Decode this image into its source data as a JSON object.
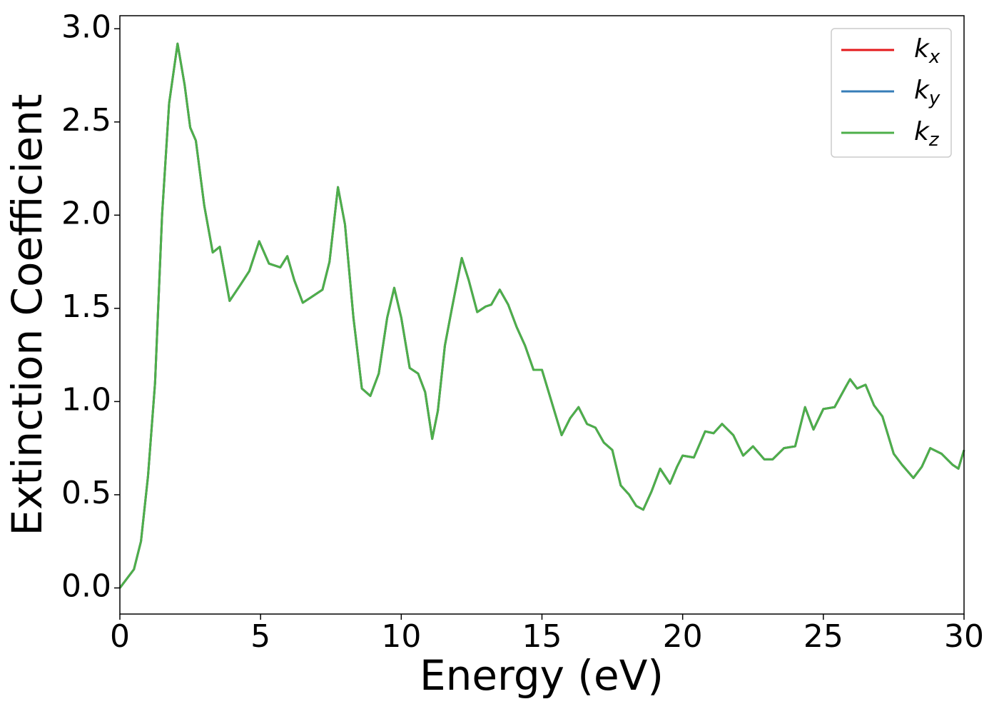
{
  "chart_data": {
    "type": "line",
    "xlabel": "Energy (eV)",
    "ylabel": "Extinction Coefficient",
    "x": [
      0,
      0.5,
      0.75,
      1.0,
      1.25,
      1.5,
      1.75,
      2.05,
      2.3,
      2.5,
      2.7,
      3.0,
      3.3,
      3.55,
      3.9,
      4.3,
      4.6,
      4.95,
      5.3,
      5.7,
      5.95,
      6.2,
      6.5,
      6.8,
      7.2,
      7.45,
      7.75,
      8.0,
      8.3,
      8.6,
      8.9,
      9.2,
      9.5,
      9.75,
      10.0,
      10.3,
      10.6,
      10.85,
      11.1,
      11.3,
      11.55,
      11.8,
      12.15,
      12.4,
      12.7,
      13.0,
      13.2,
      13.5,
      13.8,
      14.1,
      14.4,
      14.7,
      15.0,
      15.3,
      15.7,
      16.0,
      16.3,
      16.6,
      16.9,
      17.2,
      17.5,
      17.8,
      18.1,
      18.35,
      18.6,
      18.9,
      19.2,
      19.55,
      19.8,
      20.0,
      20.4,
      20.8,
      21.1,
      21.4,
      21.8,
      22.15,
      22.5,
      22.9,
      23.2,
      23.6,
      24.0,
      24.35,
      24.65,
      25.0,
      25.4,
      25.8,
      25.95,
      26.2,
      26.5,
      26.8,
      27.1,
      27.5,
      27.8,
      28.2,
      28.5,
      28.8,
      29.2,
      29.6,
      29.8,
      30.0
    ],
    "series": [
      {
        "name": "kx",
        "color": "#e41a1c",
        "values": [
          0,
          0.1,
          0.25,
          0.6,
          1.1,
          2.0,
          2.6,
          2.92,
          2.7,
          2.47,
          2.4,
          2.05,
          1.8,
          1.83,
          1.54,
          1.63,
          1.7,
          1.86,
          1.74,
          1.72,
          1.78,
          1.65,
          1.53,
          1.56,
          1.6,
          1.75,
          2.15,
          1.95,
          1.45,
          1.07,
          1.03,
          1.15,
          1.45,
          1.61,
          1.45,
          1.18,
          1.15,
          1.05,
          0.8,
          0.95,
          1.3,
          1.5,
          1.77,
          1.65,
          1.48,
          1.51,
          1.52,
          1.6,
          1.52,
          1.4,
          1.3,
          1.17,
          1.17,
          1.02,
          0.82,
          0.91,
          0.97,
          0.88,
          0.86,
          0.78,
          0.74,
          0.55,
          0.5,
          0.44,
          0.42,
          0.52,
          0.64,
          0.56,
          0.65,
          0.71,
          0.7,
          0.84,
          0.83,
          0.88,
          0.82,
          0.71,
          0.76,
          0.69,
          0.69,
          0.75,
          0.76,
          0.97,
          0.85,
          0.96,
          0.97,
          1.08,
          1.12,
          1.07,
          1.09,
          0.98,
          0.92,
          0.72,
          0.66,
          0.59,
          0.65,
          0.75,
          0.72,
          0.66,
          0.64,
          0.74
        ]
      },
      {
        "name": "ky",
        "color": "#377eb8",
        "values": [
          0,
          0.1,
          0.25,
          0.6,
          1.1,
          2.0,
          2.6,
          2.92,
          2.7,
          2.47,
          2.4,
          2.05,
          1.8,
          1.83,
          1.54,
          1.63,
          1.7,
          1.86,
          1.74,
          1.72,
          1.78,
          1.65,
          1.53,
          1.56,
          1.6,
          1.75,
          2.15,
          1.95,
          1.45,
          1.07,
          1.03,
          1.15,
          1.45,
          1.61,
          1.45,
          1.18,
          1.15,
          1.05,
          0.8,
          0.95,
          1.3,
          1.5,
          1.77,
          1.65,
          1.48,
          1.51,
          1.52,
          1.6,
          1.52,
          1.4,
          1.3,
          1.17,
          1.17,
          1.02,
          0.82,
          0.91,
          0.97,
          0.88,
          0.86,
          0.78,
          0.74,
          0.55,
          0.5,
          0.44,
          0.42,
          0.52,
          0.64,
          0.56,
          0.65,
          0.71,
          0.7,
          0.84,
          0.83,
          0.88,
          0.82,
          0.71,
          0.76,
          0.69,
          0.69,
          0.75,
          0.76,
          0.97,
          0.85,
          0.96,
          0.97,
          1.08,
          1.12,
          1.07,
          1.09,
          0.98,
          0.92,
          0.72,
          0.66,
          0.59,
          0.65,
          0.75,
          0.72,
          0.66,
          0.64,
          0.74
        ]
      },
      {
        "name": "kz",
        "color": "#4daf4a",
        "values": [
          0,
          0.1,
          0.25,
          0.6,
          1.1,
          2.0,
          2.6,
          2.92,
          2.7,
          2.47,
          2.4,
          2.05,
          1.8,
          1.83,
          1.54,
          1.63,
          1.7,
          1.86,
          1.74,
          1.72,
          1.78,
          1.65,
          1.53,
          1.56,
          1.6,
          1.75,
          2.15,
          1.95,
          1.45,
          1.07,
          1.03,
          1.15,
          1.45,
          1.61,
          1.45,
          1.18,
          1.15,
          1.05,
          0.8,
          0.95,
          1.3,
          1.5,
          1.77,
          1.65,
          1.48,
          1.51,
          1.52,
          1.6,
          1.52,
          1.4,
          1.3,
          1.17,
          1.17,
          1.02,
          0.82,
          0.91,
          0.97,
          0.88,
          0.86,
          0.78,
          0.74,
          0.55,
          0.5,
          0.44,
          0.42,
          0.52,
          0.64,
          0.56,
          0.65,
          0.71,
          0.7,
          0.84,
          0.83,
          0.88,
          0.82,
          0.71,
          0.76,
          0.69,
          0.69,
          0.75,
          0.76,
          0.97,
          0.85,
          0.96,
          0.97,
          1.08,
          1.12,
          1.07,
          1.09,
          0.98,
          0.92,
          0.72,
          0.66,
          0.59,
          0.65,
          0.75,
          0.72,
          0.66,
          0.64,
          0.74
        ]
      }
    ],
    "xlim": [
      0,
      30
    ],
    "xticks": [
      0,
      5,
      10,
      15,
      20,
      25,
      30
    ],
    "ylim": [
      -0.14,
      3.07
    ],
    "yticks": [
      {
        "value": 0,
        "label": "0.0"
      },
      {
        "value": 0.5,
        "label": "0.5"
      },
      {
        "value": 1,
        "label": "1.0"
      },
      {
        "value": 1.5,
        "label": "1.5"
      },
      {
        "value": 2,
        "label": "2.0"
      },
      {
        "value": 2.5,
        "label": "2.5"
      },
      {
        "value": 3,
        "label": "3.0"
      }
    ],
    "grid": false,
    "legend": "upper right"
  }
}
